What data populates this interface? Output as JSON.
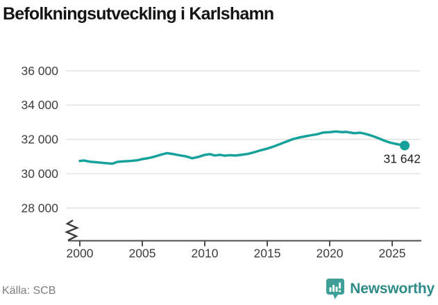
{
  "chart_data": {
    "type": "line",
    "title": "Befolkningsutveckling i Karlshamn",
    "source": "Källa: SCB",
    "xlabel": "",
    "ylabel": "",
    "grid": "horizontal",
    "axis_break": true,
    "line_color": "#16a29a",
    "xlim": [
      2000,
      2026
    ],
    "ylim": [
      28000,
      36000
    ],
    "x_ticks": [
      2000,
      2005,
      2010,
      2015,
      2020,
      2025
    ],
    "y_ticks": [
      {
        "value": 36000,
        "label": "36 000"
      },
      {
        "value": 34000,
        "label": "34 000"
      },
      {
        "value": 32000,
        "label": "32 000"
      },
      {
        "value": 30000,
        "label": "30 000"
      },
      {
        "value": 28000,
        "label": "28 000"
      }
    ],
    "end_label": "31 642",
    "end_value": 31642,
    "series": [
      {
        "points": [
          [
            2000.0,
            30740
          ],
          [
            2000.3,
            30770
          ],
          [
            2000.8,
            30700
          ],
          [
            2001.3,
            30670
          ],
          [
            2002.0,
            30620
          ],
          [
            2002.6,
            30580
          ],
          [
            2003.0,
            30690
          ],
          [
            2003.5,
            30720
          ],
          [
            2004.0,
            30740
          ],
          [
            2004.6,
            30780
          ],
          [
            2005.0,
            30850
          ],
          [
            2005.5,
            30910
          ],
          [
            2006.0,
            31000
          ],
          [
            2006.5,
            31110
          ],
          [
            2007.0,
            31200
          ],
          [
            2007.5,
            31140
          ],
          [
            2008.0,
            31070
          ],
          [
            2008.5,
            31010
          ],
          [
            2009.0,
            30900
          ],
          [
            2009.5,
            30980
          ],
          [
            2010.0,
            31100
          ],
          [
            2010.4,
            31140
          ],
          [
            2010.8,
            31060
          ],
          [
            2011.2,
            31100
          ],
          [
            2011.6,
            31050
          ],
          [
            2012.0,
            31080
          ],
          [
            2012.5,
            31060
          ],
          [
            2013.0,
            31110
          ],
          [
            2013.5,
            31160
          ],
          [
            2014.0,
            31260
          ],
          [
            2014.5,
            31370
          ],
          [
            2015.0,
            31460
          ],
          [
            2015.5,
            31580
          ],
          [
            2016.0,
            31720
          ],
          [
            2016.5,
            31860
          ],
          [
            2017.0,
            32000
          ],
          [
            2017.5,
            32100
          ],
          [
            2018.0,
            32170
          ],
          [
            2018.5,
            32240
          ],
          [
            2019.0,
            32300
          ],
          [
            2019.5,
            32400
          ],
          [
            2020.0,
            32420
          ],
          [
            2020.5,
            32460
          ],
          [
            2021.0,
            32420
          ],
          [
            2021.3,
            32440
          ],
          [
            2021.7,
            32390
          ],
          [
            2022.0,
            32360
          ],
          [
            2022.4,
            32390
          ],
          [
            2022.8,
            32330
          ],
          [
            2023.2,
            32250
          ],
          [
            2023.6,
            32150
          ],
          [
            2024.0,
            32040
          ],
          [
            2024.4,
            31920
          ],
          [
            2024.8,
            31820
          ],
          [
            2025.2,
            31750
          ],
          [
            2025.6,
            31690
          ],
          [
            2026.0,
            31642
          ]
        ]
      }
    ]
  },
  "branding": {
    "name": "Newsworthy",
    "icon": "newsworthy-speech-bubble-chart-icon",
    "text_color": "#2f8b88",
    "icon_color": "#3f9e97"
  }
}
